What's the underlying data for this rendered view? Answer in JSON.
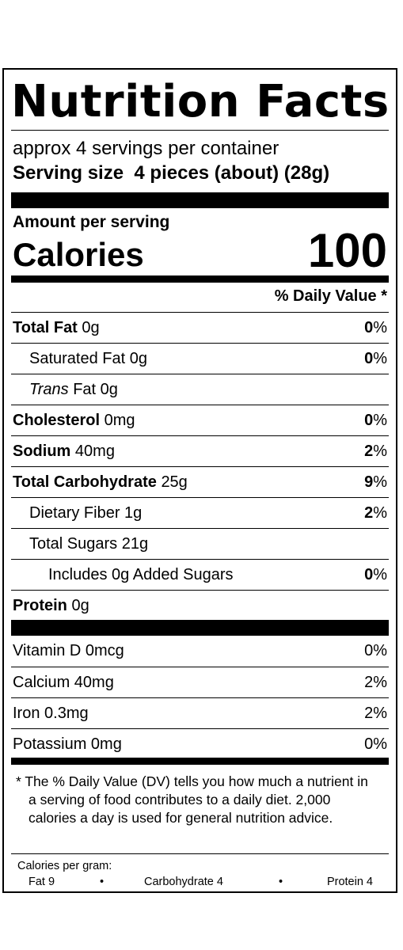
{
  "label": {
    "title": "Nutrition Facts",
    "servings_per_container": "approx 4 servings per container",
    "serving_size_label": "Serving size",
    "serving_size_value": "4 pieces (about) (28g)",
    "amount_per_serving": "Amount per serving",
    "calories_label": "Calories",
    "calories_value": "100",
    "daily_value_header": "% Daily Value *"
  },
  "nutrients": [
    {
      "name": "Total Fat",
      "amount": "0g",
      "dv": "0",
      "bold": true,
      "indent": 0
    },
    {
      "name": "Saturated Fat",
      "amount": "0g",
      "dv": "0",
      "bold": false,
      "indent": 1
    },
    {
      "name": "Trans",
      "name_suffix": " Fat",
      "amount": "0g",
      "dv": "",
      "bold": false,
      "indent": 1,
      "italic": true
    },
    {
      "name": "Cholesterol",
      "amount": "0mg",
      "dv": "0",
      "bold": true,
      "indent": 0
    },
    {
      "name": "Sodium",
      "amount": "40mg",
      "dv": "2",
      "bold": true,
      "indent": 0
    },
    {
      "name": "Total Carbohydrate",
      "amount": "25g",
      "dv": "9",
      "bold": true,
      "indent": 0
    },
    {
      "name": "Dietary Fiber",
      "amount": "1g",
      "dv": "2",
      "bold": false,
      "indent": 1
    },
    {
      "name": "Total Sugars",
      "amount": "21g",
      "dv": "",
      "bold": false,
      "indent": 1
    },
    {
      "name": "Includes 0g Added Sugars",
      "amount": "",
      "dv": "0",
      "bold": false,
      "indent": 2
    },
    {
      "name": "Protein",
      "amount": "0g",
      "dv": "",
      "bold": true,
      "indent": 0
    }
  ],
  "vitamins": [
    {
      "name": "Vitamin D 0mcg",
      "dv": "0%"
    },
    {
      "name": "Calcium 40mg",
      "dv": "2%"
    },
    {
      "name": "Iron 0.3mg",
      "dv": "2%"
    },
    {
      "name": "Potassium 0mg",
      "dv": "0%"
    }
  ],
  "footnote": "* The % Daily Value (DV) tells you how much a nutrient in a serving of food contributes to a daily diet. 2,000 calories a day is used for general nutrition advice.",
  "calories_per_gram": {
    "heading": "Calories per gram:",
    "fat": "Fat 9",
    "bullet": "•",
    "carbohydrate": "Carbohydrate 4",
    "protein": "Protein 4"
  }
}
